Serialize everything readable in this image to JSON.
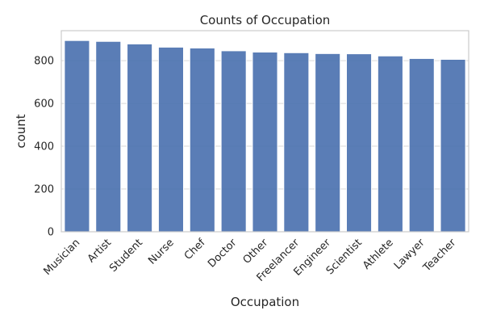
{
  "chart_data": {
    "type": "bar",
    "title": "Counts of Occupation",
    "xlabel": "Occupation",
    "ylabel": "count",
    "categories": [
      "Musician",
      "Artist",
      "Student",
      "Nurse",
      "Chef",
      "Doctor",
      "Other",
      "Freelancer",
      "Engineer",
      "Scientist",
      "Athlete",
      "Lawyer",
      "Teacher"
    ],
    "values": [
      894,
      890,
      878,
      863,
      859,
      846,
      840,
      837,
      833,
      832,
      822,
      810,
      806
    ],
    "ylim": [
      0,
      940
    ],
    "yticks": [
      0,
      200,
      400,
      600,
      800
    ],
    "grid": true,
    "color": "#4c72b0"
  }
}
